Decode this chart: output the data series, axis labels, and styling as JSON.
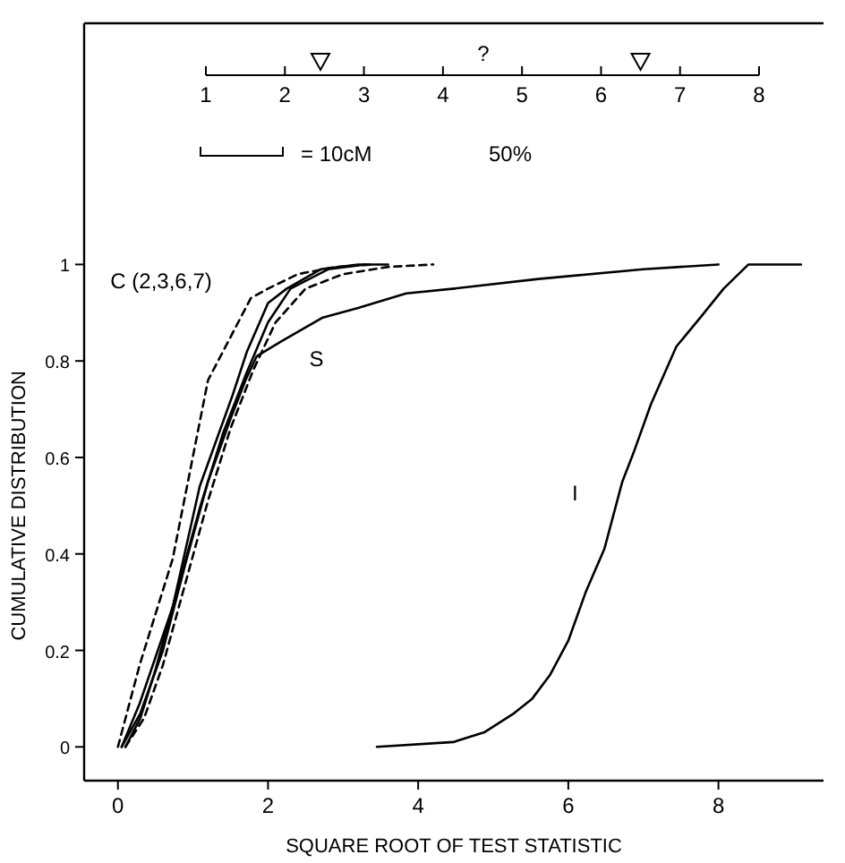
{
  "chart_data": {
    "type": "line",
    "xlabel": "SQUARE ROOT OF TEST STATISTIC",
    "ylabel": "CUMULATIVE DISTRIBUTION",
    "xlim": [
      -0.45,
      9.4
    ],
    "ylim": [
      -0.07,
      1.5
    ],
    "xticks": [
      0,
      2,
      4,
      6,
      8
    ],
    "yticks": [
      0,
      0.2,
      0.4,
      0.6,
      0.8,
      1
    ],
    "grid": false,
    "marker": "none",
    "series": [
      {
        "color": "#000000",
        "line_style": "dashed",
        "x": [
          0,
          0.29,
          0.73,
          1.2,
          1.77,
          2.0,
          2.4,
          2.9,
          3.4
        ],
        "values": [
          0,
          0.17,
          0.39,
          0.76,
          0.93,
          0.95,
          0.98,
          0.995,
          1
        ]
      },
      {
        "color": "#000000",
        "line_style": "solid",
        "x": [
          0.05,
          0.29,
          0.73,
          1.09,
          1.53,
          1.72,
          2.0,
          2.25,
          2.7,
          3.2,
          3.6
        ],
        "values": [
          0,
          0.09,
          0.29,
          0.54,
          0.73,
          0.82,
          0.92,
          0.95,
          0.99,
          1,
          1
        ]
      },
      {
        "color": "#000000",
        "line_style": "solid",
        "x": [
          0.1,
          0.3,
          0.5,
          0.8,
          1.1,
          1.4,
          1.7,
          2.0,
          2.3,
          2.8,
          3.3
        ],
        "values": [
          0,
          0.06,
          0.16,
          0.33,
          0.5,
          0.65,
          0.77,
          0.88,
          0.95,
          0.99,
          1
        ]
      },
      {
        "color": "#000000",
        "line_style": "dashed",
        "x": [
          0.1,
          0.35,
          0.6,
          0.9,
          1.2,
          1.5,
          1.8,
          2.1,
          2.5,
          3.0,
          3.6,
          4.2
        ],
        "values": [
          0,
          0.06,
          0.17,
          0.34,
          0.51,
          0.66,
          0.78,
          0.88,
          0.95,
          0.98,
          0.995,
          1
        ]
      },
      {
        "color": "#000000",
        "line_style": "solid",
        "x": [
          0.05,
          0.3,
          0.6,
          0.9,
          1.2,
          1.5,
          1.7,
          1.85,
          2.17,
          2.73,
          3.2,
          3.84,
          4.48,
          5.6,
          7.0,
          8.0
        ],
        "values": [
          0,
          0.07,
          0.2,
          0.38,
          0.55,
          0.68,
          0.76,
          0.81,
          0.84,
          0.89,
          0.91,
          0.94,
          0.95,
          0.97,
          0.99,
          1
        ]
      },
      {
        "color": "#000000",
        "line_style": "solid",
        "x": [
          3.45,
          4.47,
          4.88,
          5.28,
          5.52,
          5.76,
          6.0,
          6.23,
          6.48,
          6.72,
          6.87,
          7.1,
          7.44,
          7.76,
          8.07,
          8.4,
          9.1
        ],
        "values": [
          0,
          0.01,
          0.03,
          0.07,
          0.1,
          0.15,
          0.22,
          0.32,
          0.41,
          0.55,
          0.61,
          0.71,
          0.83,
          0.89,
          0.95,
          1,
          1
        ]
      }
    ],
    "annotations": [
      "C (2,3,6,7)",
      "S",
      "I",
      "1",
      "2",
      "3",
      "4",
      "5",
      "6",
      "7",
      "8",
      "?",
      "= 10cM",
      "50%"
    ]
  }
}
